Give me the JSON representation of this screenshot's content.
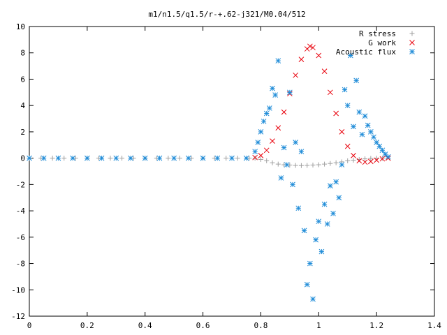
{
  "chart_data": {
    "type": "scatter",
    "title": "m1/n1.5/q1.5/r-+.62-j321/M0.04/512",
    "xlabel": "",
    "ylabel": "",
    "xlim": [
      0,
      1.4
    ],
    "ylim": [
      -12,
      10
    ],
    "xticks": [
      0,
      0.2,
      0.4,
      0.6,
      0.8,
      1,
      1.2,
      1.4
    ],
    "xtick_labels": [
      "0",
      "0.2",
      "0.4",
      "0.6",
      "0.8",
      "1",
      "1.2",
      "1.4"
    ],
    "yticks": [
      -12,
      -10,
      -8,
      -6,
      -4,
      -2,
      0,
      2,
      4,
      6,
      8,
      10
    ],
    "ytick_labels": [
      "-12",
      "-10",
      "-8",
      "-6",
      "-4",
      "-2",
      "0",
      "2",
      "4",
      "6",
      "8",
      "10"
    ],
    "grid": false,
    "legend_position": "top-right",
    "series": [
      {
        "name": "R stress",
        "marker": "plus",
        "color": "#a0a0a0",
        "x": [
          0,
          0.04,
          0.08,
          0.12,
          0.16,
          0.2,
          0.24,
          0.28,
          0.32,
          0.36,
          0.4,
          0.44,
          0.48,
          0.52,
          0.56,
          0.6,
          0.64,
          0.68,
          0.72,
          0.76,
          0.78,
          0.8,
          0.82,
          0.84,
          0.86,
          0.88,
          0.9,
          0.92,
          0.94,
          0.96,
          0.98,
          1.0,
          1.02,
          1.04,
          1.06,
          1.08,
          1.1,
          1.12,
          1.14,
          1.16,
          1.18,
          1.2,
          1.22
        ],
        "y": [
          0,
          0,
          0,
          0,
          0,
          0,
          0,
          0,
          0,
          0,
          0,
          0,
          0,
          0,
          0,
          0,
          0,
          0,
          0,
          0,
          0,
          -0.1,
          -0.2,
          -0.35,
          -0.45,
          -0.5,
          -0.52,
          -0.55,
          -0.56,
          -0.55,
          -0.52,
          -0.5,
          -0.45,
          -0.4,
          -0.35,
          -0.28,
          -0.2,
          -0.15,
          -0.1,
          -0.05,
          -0.02,
          0,
          0
        ]
      },
      {
        "name": "G work",
        "marker": "cross",
        "color": "#e8000b",
        "x": [
          0.78,
          0.8,
          0.82,
          0.84,
          0.86,
          0.88,
          0.9,
          0.92,
          0.94,
          0.96,
          0.97,
          0.98,
          1.0,
          1.02,
          1.04,
          1.06,
          1.08,
          1.1,
          1.12,
          1.14,
          1.16,
          1.18,
          1.2,
          1.22,
          1.24
        ],
        "y": [
          0.05,
          0.2,
          0.6,
          1.3,
          2.3,
          3.5,
          4.9,
          6.3,
          7.5,
          8.3,
          8.5,
          8.4,
          7.8,
          6.6,
          5.0,
          3.4,
          2.0,
          0.9,
          0.2,
          -0.2,
          -0.3,
          -0.25,
          -0.15,
          -0.05,
          0
        ]
      },
      {
        "name": "Acoustic flux",
        "marker": "star",
        "color": "#1f8cd8",
        "x": [
          0,
          0.05,
          0.1,
          0.15,
          0.2,
          0.25,
          0.3,
          0.35,
          0.4,
          0.45,
          0.5,
          0.55,
          0.6,
          0.65,
          0.7,
          0.75,
          0.78,
          0.79,
          0.8,
          0.81,
          0.82,
          0.83,
          0.84,
          0.85,
          0.86,
          0.87,
          0.88,
          0.89,
          0.9,
          0.91,
          0.92,
          0.93,
          0.94,
          0.95,
          0.96,
          0.97,
          0.98,
          0.99,
          1.0,
          1.01,
          1.02,
          1.03,
          1.04,
          1.05,
          1.06,
          1.07,
          1.08,
          1.09,
          1.1,
          1.11,
          1.12,
          1.13,
          1.14,
          1.15,
          1.16,
          1.17,
          1.18,
          1.19,
          1.2,
          1.21,
          1.22,
          1.23,
          1.24
        ],
        "y": [
          0,
          0,
          0,
          0,
          0,
          0,
          0,
          0,
          0,
          0,
          0,
          0,
          0,
          0,
          0,
          0,
          0.5,
          1.2,
          2.0,
          2.8,
          3.4,
          3.8,
          5.3,
          4.8,
          7.4,
          -1.5,
          0.8,
          -0.5,
          5.0,
          -2.0,
          1.2,
          -3.8,
          0.5,
          -5.5,
          -9.6,
          -8.0,
          -10.7,
          -6.2,
          -4.8,
          -7.1,
          -3.5,
          -5.0,
          -2.1,
          -4.2,
          -1.8,
          -3.0,
          -0.5,
          5.2,
          4.0,
          7.8,
          2.4,
          5.9,
          3.5,
          1.8,
          3.2,
          2.5,
          2.0,
          1.6,
          1.2,
          0.9,
          0.6,
          0.3,
          0.1
        ]
      }
    ]
  }
}
